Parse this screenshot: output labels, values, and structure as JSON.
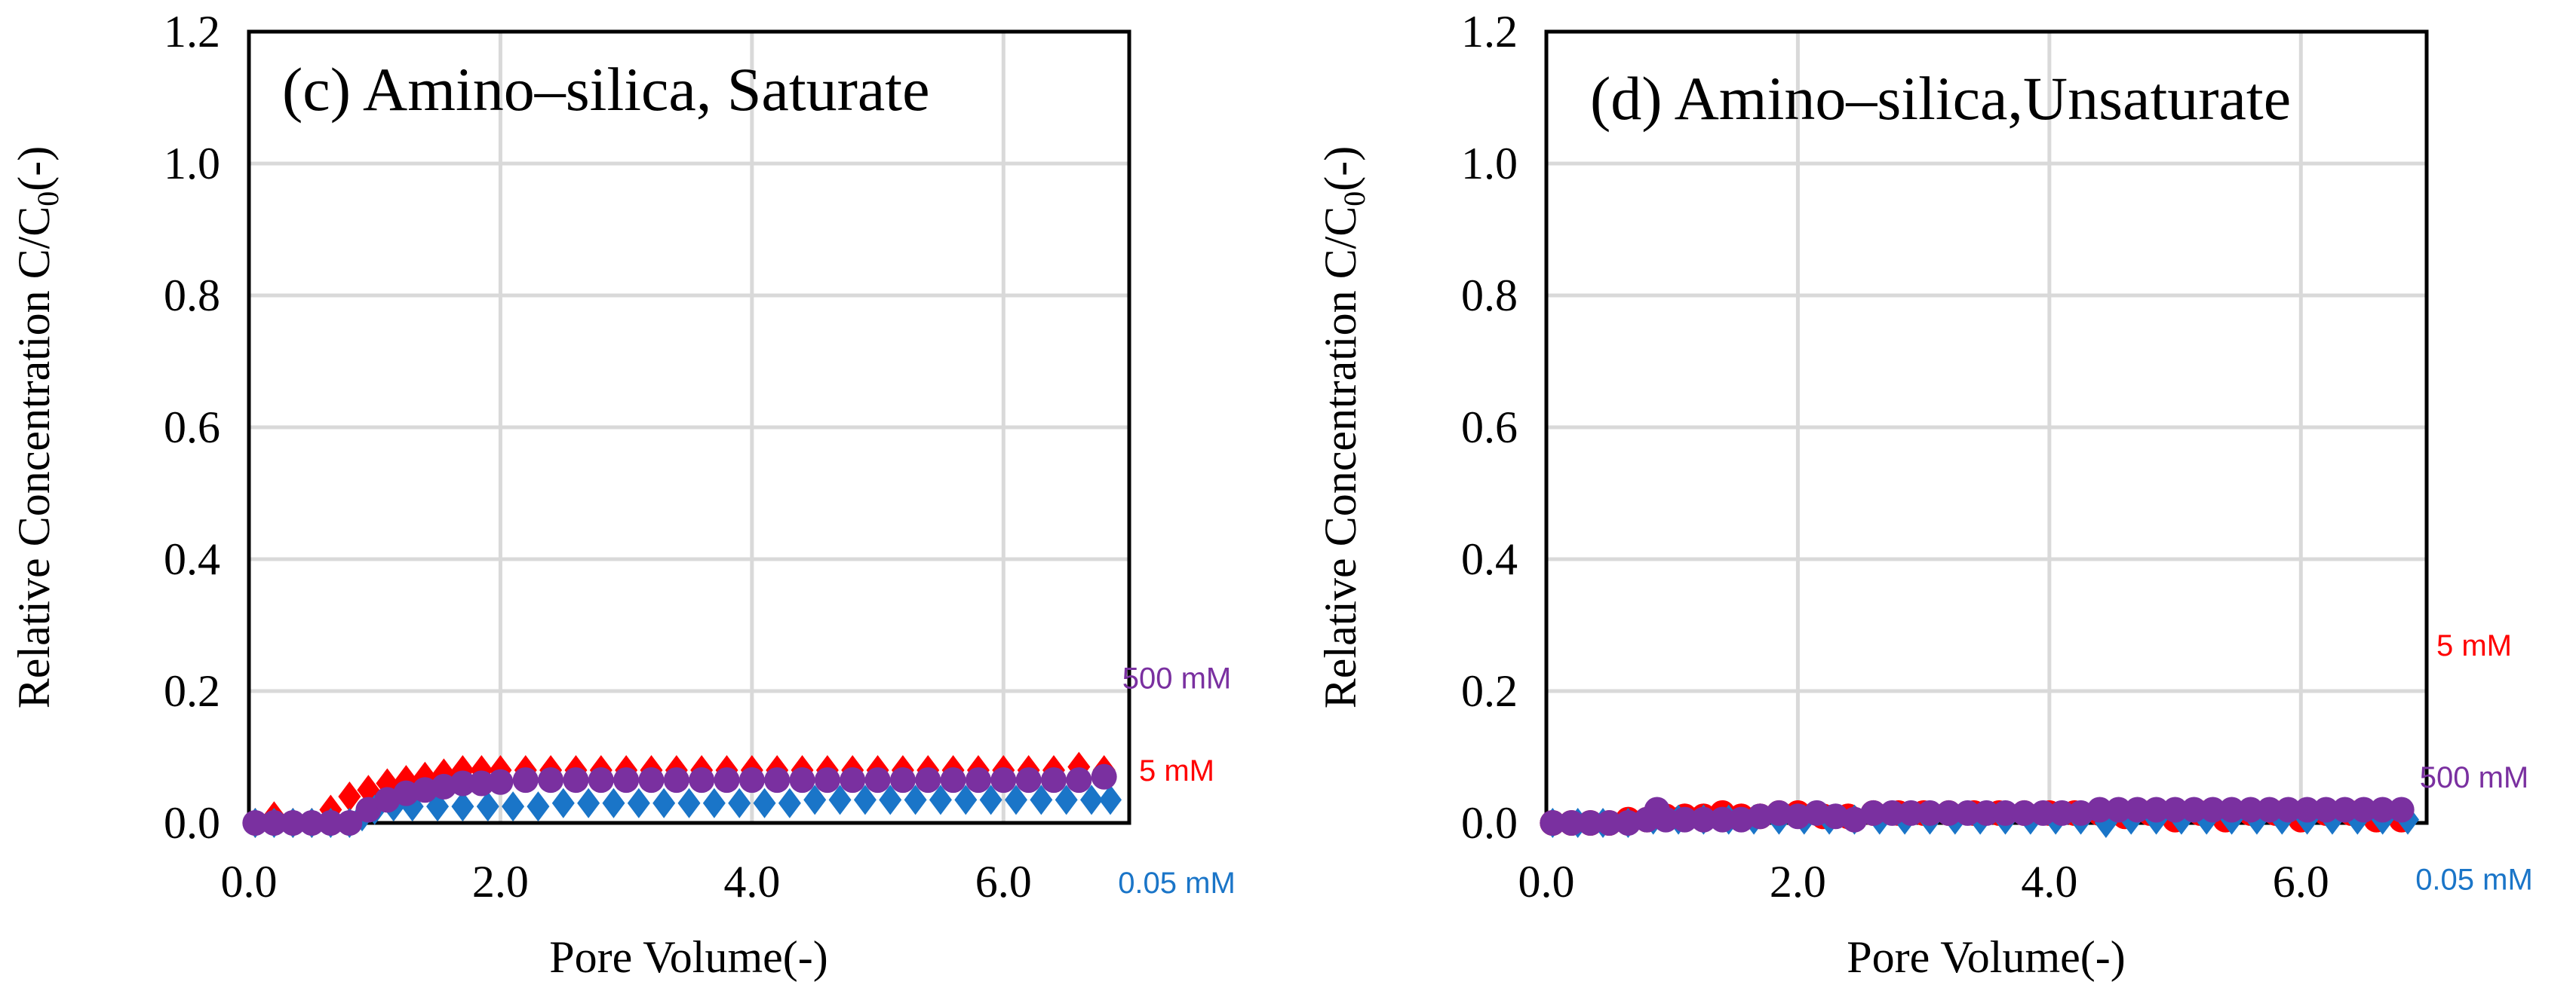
{
  "chart_data": [
    {
      "type": "scatter",
      "title": "(c) Amino–silica, Saturate",
      "xlabel": "Pore Volume(-)",
      "ylabel": "Relative Concentration C/C",
      "ylabel_sub": "0",
      "ylabel_suffix": "(-)",
      "xlim": [
        0,
        7.0
      ],
      "ylim": [
        0,
        1.2
      ],
      "xticks": [
        0,
        2,
        4,
        6
      ],
      "xtick_labels": [
        "0.0",
        "2.0",
        "4.0",
        "6.0"
      ],
      "yticks": [
        0,
        0.2,
        0.4,
        0.6,
        0.8,
        1.0,
        1.2
      ],
      "ytick_labels": [
        "0.0",
        "0.2",
        "0.4",
        "0.6",
        "0.8",
        "1.0",
        "1.2"
      ],
      "grid": true,
      "series": [
        {
          "name": "5 mM",
          "color": "#ff0000",
          "marker": "diamond",
          "label_y": 0.08,
          "points": [
            [
              0.05,
              0.0
            ],
            [
              0.2,
              0.01
            ],
            [
              0.35,
              0.0
            ],
            [
              0.5,
              0.0
            ],
            [
              0.65,
              0.02
            ],
            [
              0.8,
              0.04
            ],
            [
              0.95,
              0.05
            ],
            [
              1.1,
              0.06
            ],
            [
              1.25,
              0.065
            ],
            [
              1.4,
              0.07
            ],
            [
              1.55,
              0.075
            ],
            [
              1.7,
              0.08
            ],
            [
              1.85,
              0.08
            ],
            [
              2.0,
              0.08
            ],
            [
              2.2,
              0.08
            ],
            [
              2.4,
              0.08
            ],
            [
              2.6,
              0.08
            ],
            [
              2.8,
              0.08
            ],
            [
              3.0,
              0.08
            ],
            [
              3.2,
              0.08
            ],
            [
              3.4,
              0.08
            ],
            [
              3.6,
              0.08
            ],
            [
              3.8,
              0.08
            ],
            [
              4.0,
              0.08
            ],
            [
              4.2,
              0.08
            ],
            [
              4.4,
              0.08
            ],
            [
              4.6,
              0.08
            ],
            [
              4.8,
              0.08
            ],
            [
              5.0,
              0.08
            ],
            [
              5.2,
              0.08
            ],
            [
              5.4,
              0.08
            ],
            [
              5.6,
              0.08
            ],
            [
              5.8,
              0.08
            ],
            [
              6.0,
              0.08
            ],
            [
              6.2,
              0.08
            ],
            [
              6.4,
              0.08
            ],
            [
              6.6,
              0.085
            ],
            [
              6.8,
              0.08
            ]
          ]
        },
        {
          "name": "0.05 mM",
          "color": "#1a75c8",
          "marker": "diamond",
          "label_y": -0.09,
          "points": [
            [
              0.05,
              0.0
            ],
            [
              0.2,
              0.0
            ],
            [
              0.35,
              0.0
            ],
            [
              0.5,
              0.0
            ],
            [
              0.65,
              0.0
            ],
            [
              0.8,
              0.0
            ],
            [
              0.9,
              0.01
            ],
            [
              1.0,
              0.02
            ],
            [
              1.15,
              0.025
            ],
            [
              1.3,
              0.025
            ],
            [
              1.5,
              0.025
            ],
            [
              1.7,
              0.025
            ],
            [
              1.9,
              0.025
            ],
            [
              2.1,
              0.025
            ],
            [
              2.3,
              0.025
            ],
            [
              2.5,
              0.03
            ],
            [
              2.7,
              0.03
            ],
            [
              2.9,
              0.03
            ],
            [
              3.1,
              0.03
            ],
            [
              3.3,
              0.03
            ],
            [
              3.5,
              0.03
            ],
            [
              3.7,
              0.03
            ],
            [
              3.9,
              0.03
            ],
            [
              4.1,
              0.03
            ],
            [
              4.3,
              0.03
            ],
            [
              4.5,
              0.035
            ],
            [
              4.7,
              0.035
            ],
            [
              4.9,
              0.035
            ],
            [
              5.1,
              0.035
            ],
            [
              5.3,
              0.035
            ],
            [
              5.5,
              0.035
            ],
            [
              5.7,
              0.035
            ],
            [
              5.9,
              0.035
            ],
            [
              6.1,
              0.035
            ],
            [
              6.3,
              0.035
            ],
            [
              6.5,
              0.035
            ],
            [
              6.7,
              0.035
            ],
            [
              6.85,
              0.035
            ]
          ]
        },
        {
          "name": "500 mM",
          "color": "#7a30a0",
          "marker": "circle",
          "label_y": 0.22,
          "points": [
            [
              0.05,
              0.0
            ],
            [
              0.2,
              0.0
            ],
            [
              0.35,
              0.0
            ],
            [
              0.5,
              0.0
            ],
            [
              0.65,
              0.0
            ],
            [
              0.8,
              0.0
            ],
            [
              0.95,
              0.02
            ],
            [
              1.1,
              0.035
            ],
            [
              1.25,
              0.045
            ],
            [
              1.4,
              0.05
            ],
            [
              1.55,
              0.055
            ],
            [
              1.7,
              0.06
            ],
            [
              1.85,
              0.06
            ],
            [
              2.0,
              0.062
            ],
            [
              2.2,
              0.065
            ],
            [
              2.4,
              0.065
            ],
            [
              2.6,
              0.065
            ],
            [
              2.8,
              0.065
            ],
            [
              3.0,
              0.065
            ],
            [
              3.2,
              0.065
            ],
            [
              3.4,
              0.065
            ],
            [
              3.6,
              0.065
            ],
            [
              3.8,
              0.065
            ],
            [
              4.0,
              0.065
            ],
            [
              4.2,
              0.065
            ],
            [
              4.4,
              0.065
            ],
            [
              4.6,
              0.065
            ],
            [
              4.8,
              0.065
            ],
            [
              5.0,
              0.065
            ],
            [
              5.2,
              0.065
            ],
            [
              5.4,
              0.065
            ],
            [
              5.6,
              0.065
            ],
            [
              5.8,
              0.065
            ],
            [
              6.0,
              0.065
            ],
            [
              6.2,
              0.065
            ],
            [
              6.4,
              0.065
            ],
            [
              6.6,
              0.065
            ],
            [
              6.8,
              0.07
            ]
          ]
        }
      ]
    },
    {
      "type": "scatter",
      "title": "(d) Amino–silica,Unsaturate",
      "xlabel": "Pore Volume(-)",
      "ylabel": "Relative Concentration C/C",
      "ylabel_sub": "0",
      "ylabel_suffix": "(-)",
      "xlim": [
        0,
        7.0
      ],
      "ylim": [
        0,
        1.2
      ],
      "xticks": [
        0,
        2,
        4,
        6
      ],
      "xtick_labels": [
        "0.0",
        "2.0",
        "4.0",
        "6.0"
      ],
      "yticks": [
        0,
        0.2,
        0.4,
        0.6,
        0.8,
        1.0,
        1.2
      ],
      "ytick_labels": [
        "0.0",
        "0.2",
        "0.4",
        "0.6",
        "0.8",
        "1.0",
        "1.2"
      ],
      "grid": true,
      "series": [
        {
          "name": "5 mM",
          "color": "#ff0000",
          "marker": "circle",
          "label_y": 0.27,
          "points": [
            [
              0.05,
              0.0
            ],
            [
              0.2,
              0.0
            ],
            [
              0.35,
              0.0
            ],
            [
              0.5,
              0.0
            ],
            [
              0.65,
              0.005
            ],
            [
              0.8,
              0.005
            ],
            [
              0.95,
              0.01
            ],
            [
              1.1,
              0.01
            ],
            [
              1.25,
              0.01
            ],
            [
              1.4,
              0.015
            ],
            [
              1.55,
              0.01
            ],
            [
              1.7,
              0.01
            ],
            [
              1.85,
              0.015
            ],
            [
              2.0,
              0.015
            ],
            [
              2.2,
              0.01
            ],
            [
              2.4,
              0.01
            ],
            [
              2.6,
              0.015
            ],
            [
              2.8,
              0.015
            ],
            [
              3.0,
              0.015
            ],
            [
              3.2,
              0.015
            ],
            [
              3.4,
              0.015
            ],
            [
              3.6,
              0.015
            ],
            [
              3.8,
              0.015
            ],
            [
              4.0,
              0.015
            ],
            [
              4.2,
              0.015
            ],
            [
              4.4,
              0.015
            ],
            [
              4.6,
              0.01
            ],
            [
              4.8,
              0.015
            ],
            [
              5.0,
              0.005
            ],
            [
              5.2,
              0.015
            ],
            [
              5.4,
              0.005
            ],
            [
              5.6,
              0.015
            ],
            [
              5.8,
              0.015
            ],
            [
              6.0,
              0.005
            ],
            [
              6.2,
              0.015
            ],
            [
              6.4,
              0.015
            ],
            [
              6.6,
              0.005
            ],
            [
              6.8,
              0.005
            ]
          ]
        },
        {
          "name": "0.05 mM",
          "color": "#1a75c8",
          "marker": "diamond",
          "label_y": -0.085,
          "points": [
            [
              0.05,
              0.0
            ],
            [
              0.25,
              0.0
            ],
            [
              0.45,
              0.0
            ],
            [
              0.65,
              0.0
            ],
            [
              0.85,
              0.005
            ],
            [
              1.05,
              0.005
            ],
            [
              1.25,
              0.005
            ],
            [
              1.45,
              0.005
            ],
            [
              1.65,
              0.005
            ],
            [
              1.85,
              0.005
            ],
            [
              2.05,
              0.005
            ],
            [
              2.25,
              0.005
            ],
            [
              2.45,
              0.005
            ],
            [
              2.65,
              0.005
            ],
            [
              2.85,
              0.005
            ],
            [
              3.05,
              0.005
            ],
            [
              3.25,
              0.005
            ],
            [
              3.45,
              0.005
            ],
            [
              3.65,
              0.005
            ],
            [
              3.85,
              0.005
            ],
            [
              4.05,
              0.005
            ],
            [
              4.25,
              0.005
            ],
            [
              4.45,
              0.0
            ],
            [
              4.65,
              0.005
            ],
            [
              4.85,
              0.005
            ],
            [
              5.05,
              0.005
            ],
            [
              5.25,
              0.005
            ],
            [
              5.45,
              0.005
            ],
            [
              5.65,
              0.005
            ],
            [
              5.85,
              0.005
            ],
            [
              6.05,
              0.005
            ],
            [
              6.25,
              0.005
            ],
            [
              6.45,
              0.005
            ],
            [
              6.65,
              0.005
            ],
            [
              6.85,
              0.005
            ]
          ]
        },
        {
          "name": "500 mM",
          "color": "#7a30a0",
          "marker": "circle",
          "label_y": 0.07,
          "points": [
            [
              0.05,
              0.0
            ],
            [
              0.2,
              0.0
            ],
            [
              0.35,
              0.0
            ],
            [
              0.5,
              0.0
            ],
            [
              0.65,
              0.0
            ],
            [
              0.8,
              0.005
            ],
            [
              0.88,
              0.02
            ],
            [
              0.95,
              0.005
            ],
            [
              1.1,
              0.005
            ],
            [
              1.25,
              0.005
            ],
            [
              1.4,
              0.005
            ],
            [
              1.55,
              0.005
            ],
            [
              1.7,
              0.01
            ],
            [
              1.85,
              0.015
            ],
            [
              2.0,
              0.01
            ],
            [
              2.15,
              0.015
            ],
            [
              2.3,
              0.01
            ],
            [
              2.45,
              0.005
            ],
            [
              2.6,
              0.015
            ],
            [
              2.75,
              0.015
            ],
            [
              2.9,
              0.015
            ],
            [
              3.05,
              0.015
            ],
            [
              3.2,
              0.015
            ],
            [
              3.35,
              0.015
            ],
            [
              3.5,
              0.015
            ],
            [
              3.65,
              0.015
            ],
            [
              3.8,
              0.015
            ],
            [
              3.95,
              0.015
            ],
            [
              4.1,
              0.015
            ],
            [
              4.25,
              0.015
            ],
            [
              4.4,
              0.02
            ],
            [
              4.55,
              0.02
            ],
            [
              4.7,
              0.02
            ],
            [
              4.85,
              0.02
            ],
            [
              5.0,
              0.02
            ],
            [
              5.15,
              0.02
            ],
            [
              5.3,
              0.02
            ],
            [
              5.45,
              0.02
            ],
            [
              5.6,
              0.02
            ],
            [
              5.75,
              0.02
            ],
            [
              5.9,
              0.02
            ],
            [
              6.05,
              0.02
            ],
            [
              6.2,
              0.02
            ],
            [
              6.35,
              0.02
            ],
            [
              6.5,
              0.02
            ],
            [
              6.65,
              0.02
            ],
            [
              6.8,
              0.02
            ]
          ]
        }
      ]
    }
  ]
}
